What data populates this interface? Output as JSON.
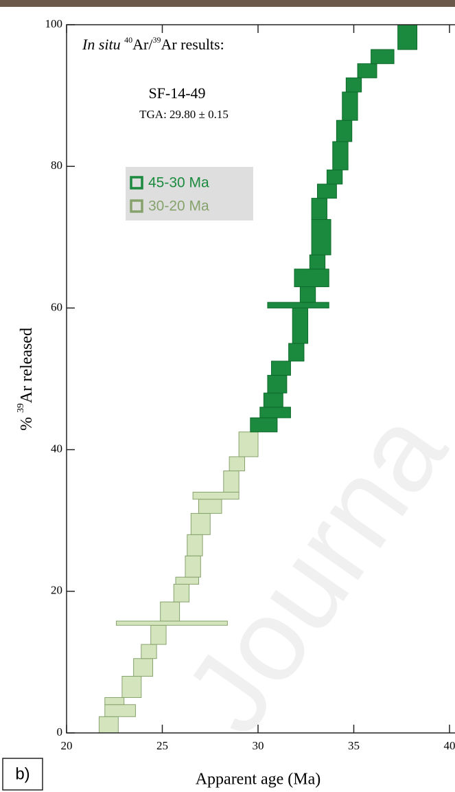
{
  "chart_data": {
    "type": "age-spectrum",
    "title_parts": [
      "In situ",
      "40",
      "Ar/",
      "39",
      "Ar results:"
    ],
    "sample": "SF-14-49",
    "tga": "TGA: 29.80 ± 0.15",
    "panel_label": "b)",
    "watermark": "Journa",
    "x_label": "Apparent age (Ma)",
    "y_label_parts": [
      "% ",
      "39",
      "Ar released"
    ],
    "xlim": [
      20,
      40
    ],
    "ylim": [
      0,
      100
    ],
    "xticks": [
      20,
      25,
      30,
      35,
      40
    ],
    "yticks": [
      0,
      20,
      40,
      60,
      80,
      100
    ],
    "series": [
      {
        "name": "45-30 Ma",
        "color": "#1b8a3e",
        "edge": "#0c6a2a",
        "values": [
          2.0,
          1.5,
          2.0,
          2.5,
          2.0,
          2.5,
          5.0,
          0.8,
          2.2,
          2.5,
          2.0,
          5.0,
          3.0,
          2.0,
          2.0,
          4.0,
          3.0,
          4.0,
          2.0,
          2.0,
          2.0,
          3.5
        ],
        "ages": [
          30.3,
          30.9,
          30.8,
          31.0,
          31.2,
          32.0,
          32.2,
          32.1,
          32.6,
          32.8,
          33.1,
          33.3,
          33.2,
          33.6,
          34.0,
          34.3,
          34.5,
          34.8,
          35.0,
          35.7,
          36.5,
          37.8
        ],
        "errors": [
          0.7,
          0.8,
          0.5,
          0.5,
          0.5,
          0.4,
          0.4,
          1.6,
          0.4,
          0.9,
          0.4,
          0.5,
          0.4,
          0.5,
          0.4,
          0.4,
          0.4,
          0.4,
          0.4,
          0.5,
          0.6,
          0.5
        ]
      },
      {
        "name": "30-20 Ma",
        "color": "#d4e5bd",
        "edge": "#86a26c",
        "values": [
          2.3,
          1.7,
          1.0,
          3.0,
          2.5,
          2.0,
          2.7,
          0.6,
          2.7,
          2.5,
          1.0,
          3.0,
          3.0,
          3.0,
          2.0,
          1.0,
          3.0,
          2.0,
          3.5
        ],
        "ages": [
          22.2,
          22.8,
          22.5,
          23.4,
          24.0,
          24.3,
          24.8,
          25.5,
          25.4,
          26.0,
          26.3,
          26.6,
          26.7,
          27.0,
          27.5,
          27.8,
          28.6,
          28.9,
          29.5
        ],
        "errors": [
          0.5,
          0.8,
          0.5,
          0.5,
          0.5,
          0.4,
          0.4,
          2.9,
          0.5,
          0.4,
          0.6,
          0.4,
          0.4,
          0.5,
          0.6,
          1.2,
          0.4,
          0.4,
          0.5
        ]
      }
    ]
  }
}
